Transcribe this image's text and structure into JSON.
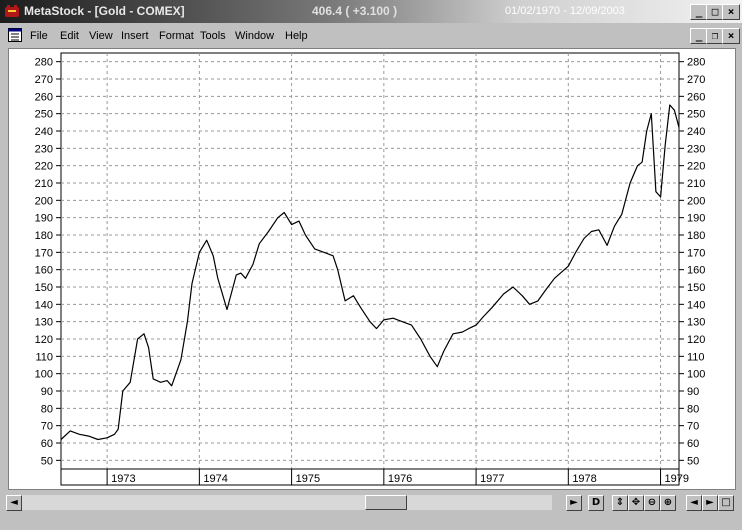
{
  "window": {
    "app_name": "MetaStock - [Gold - COMEX]",
    "price_readout": "406.4 ( +3.100 )",
    "date_range": "01/02/1970 - 12/09/2003",
    "buttons": {
      "minimize": "_",
      "maximize": "□",
      "close": "×"
    }
  },
  "menu": {
    "items": [
      "File",
      "Edit",
      "View",
      "Insert",
      "Format",
      "Tools",
      "Window",
      "Help"
    ],
    "doc_buttons": {
      "minimize": "_",
      "restore": "❐",
      "close": "×"
    }
  },
  "bottom": {
    "buttons": [
      "◄",
      "►",
      "D",
      "⇕",
      "✥",
      "⊖",
      "⊕",
      "◄",
      "►",
      "□"
    ]
  },
  "colors": {
    "line": "#000000",
    "grid": "#9a9a9a",
    "background": "#ffffff"
  },
  "chart_data": {
    "type": "line",
    "title": "",
    "ylim": [
      45,
      285
    ],
    "y_ticks": [
      50,
      60,
      70,
      80,
      90,
      100,
      110,
      120,
      130,
      140,
      150,
      160,
      170,
      180,
      190,
      200,
      210,
      220,
      230,
      240,
      250,
      260,
      270,
      280
    ],
    "xlim": [
      1972.5,
      1979.2
    ],
    "x_ticks": [
      "1973",
      "1974",
      "1975",
      "1976",
      "1977",
      "1978",
      "1979"
    ],
    "x_tick_values": [
      1973,
      1974,
      1975,
      1976,
      1977,
      1978,
      1979
    ],
    "grid": true,
    "series": [
      {
        "x": [
          1972.5,
          1972.6,
          1972.7,
          1972.8,
          1972.9,
          1973.0,
          1973.08,
          1973.12,
          1973.17,
          1973.25,
          1973.33,
          1973.4,
          1973.45,
          1973.5,
          1973.58,
          1973.65,
          1973.7,
          1973.8,
          1973.87,
          1973.92,
          1974.0,
          1974.08,
          1974.15,
          1974.2,
          1974.3,
          1974.4,
          1974.45,
          1974.5,
          1974.58,
          1974.65,
          1974.75,
          1974.85,
          1974.92,
          1975.0,
          1975.08,
          1975.15,
          1975.25,
          1975.35,
          1975.45,
          1975.5,
          1975.58,
          1975.67,
          1975.75,
          1975.85,
          1975.92,
          1976.0,
          1976.1,
          1976.2,
          1976.3,
          1976.4,
          1976.5,
          1976.58,
          1976.65,
          1976.75,
          1976.85,
          1976.92,
          1977.0,
          1977.08,
          1977.17,
          1977.3,
          1977.4,
          1977.5,
          1977.58,
          1977.67,
          1977.75,
          1977.85,
          1978.0,
          1978.08,
          1978.17,
          1978.25,
          1978.33,
          1978.42,
          1978.5,
          1978.58,
          1978.67,
          1978.75,
          1978.8,
          1978.85,
          1978.9,
          1978.95,
          1979.0,
          1979.05,
          1979.1,
          1979.15,
          1979.2
        ],
        "y": [
          62,
          67,
          65,
          64,
          62,
          63,
          65,
          68,
          90,
          95,
          120,
          123,
          115,
          97,
          95,
          96,
          93,
          108,
          130,
          152,
          170,
          177,
          168,
          155,
          137,
          157,
          158,
          155,
          163,
          175,
          182,
          190,
          193,
          186,
          188,
          180,
          172,
          170,
          168,
          160,
          142,
          145,
          138,
          130,
          126,
          131,
          132,
          130,
          128,
          120,
          110,
          104,
          113,
          123,
          124,
          126,
          128,
          133,
          138,
          146,
          150,
          145,
          140,
          142,
          148,
          155,
          162,
          170,
          178,
          182,
          183,
          174,
          185,
          192,
          210,
          220,
          222,
          240,
          250,
          205,
          202,
          232,
          255,
          252,
          242
        ]
      }
    ]
  }
}
